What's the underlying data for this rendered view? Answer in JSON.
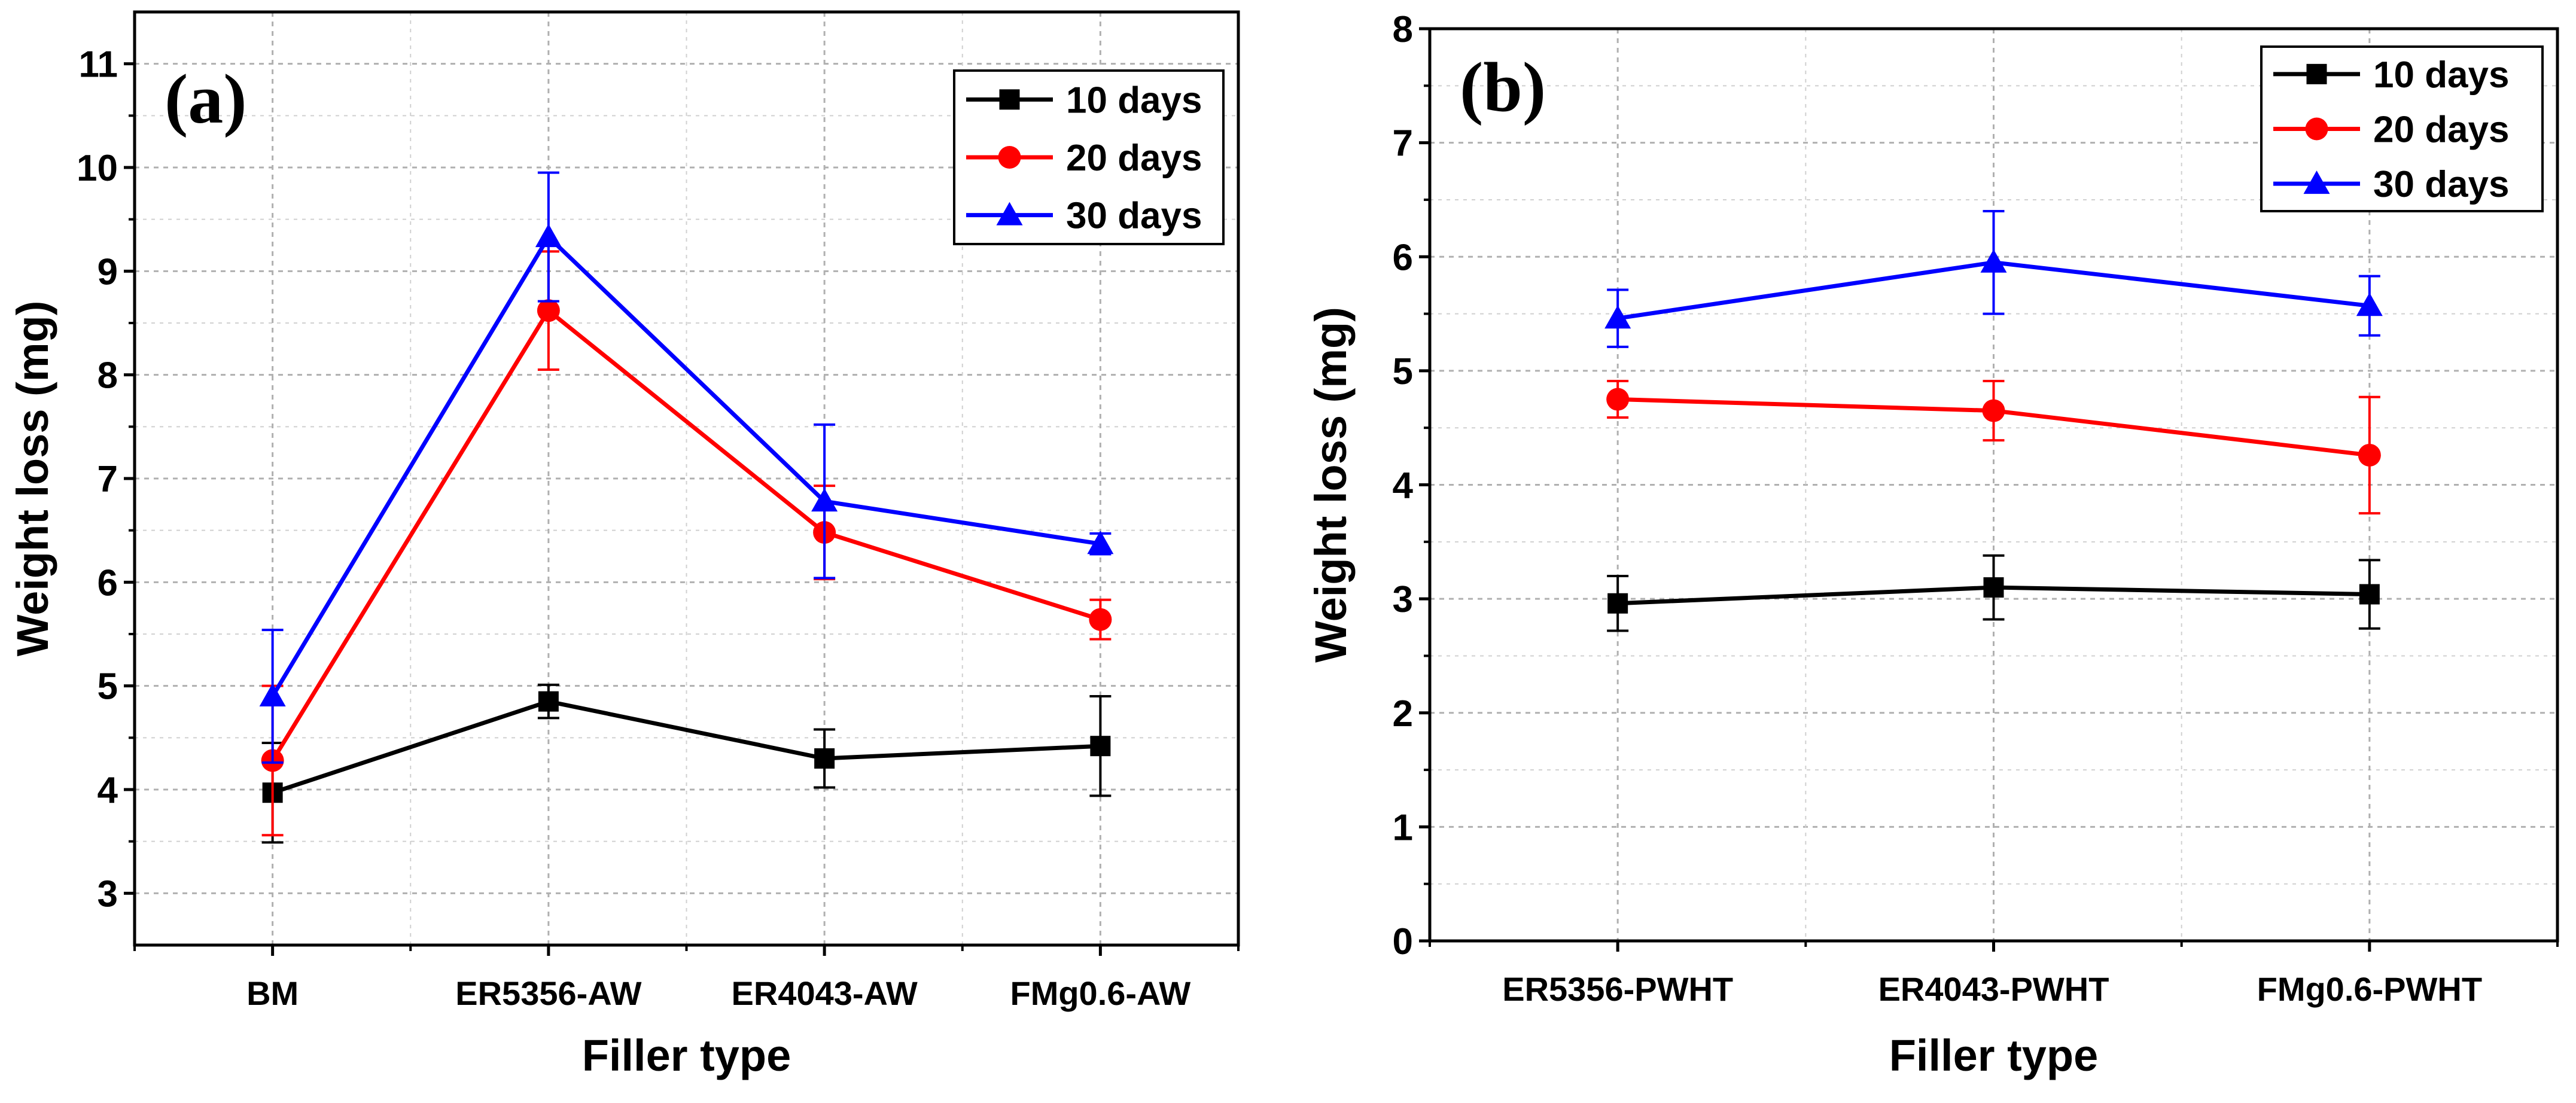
{
  "chart_data": [
    {
      "panel": "(a)",
      "type": "line",
      "xlabel": "Filler type",
      "ylabel": "Weight loss (mg)",
      "categories": [
        "BM",
        "ER5356-AW",
        "ER4043-AW",
        "FMg0.6-AW"
      ],
      "ylim": [
        2.5,
        11.5
      ],
      "yticks": [
        3,
        4,
        5,
        6,
        7,
        8,
        9,
        10,
        11
      ],
      "grid": true,
      "legend_position": "top-right",
      "series": [
        {
          "name": "10 days",
          "color": "#000000",
          "marker": "square",
          "values": [
            3.97,
            4.85,
            4.3,
            4.42
          ],
          "errors": [
            0.48,
            0.16,
            0.28,
            0.48
          ]
        },
        {
          "name": "20 days",
          "color": "#ff0000",
          "marker": "circle",
          "values": [
            4.28,
            8.62,
            6.48,
            5.64
          ],
          "errors": [
            0.72,
            0.57,
            0.45,
            0.19
          ]
        },
        {
          "name": "30 days",
          "color": "#0000ff",
          "marker": "triangle",
          "values": [
            4.9,
            9.33,
            6.78,
            6.37
          ],
          "errors": [
            0.64,
            0.62,
            0.74,
            0.1
          ]
        }
      ]
    },
    {
      "panel": "(b)",
      "type": "line",
      "xlabel": "Filler type",
      "ylabel": "Weight loss (mg)",
      "categories": [
        "ER5356-PWHT",
        "ER4043-PWHT",
        "FMg0.6-PWHT"
      ],
      "ylim": [
        0,
        8
      ],
      "yticks": [
        0,
        1,
        2,
        3,
        4,
        5,
        6,
        7,
        8
      ],
      "grid": true,
      "legend_position": "top-right",
      "series": [
        {
          "name": "10 days",
          "color": "#000000",
          "marker": "square",
          "values": [
            2.96,
            3.1,
            3.04
          ],
          "errors": [
            0.24,
            0.28,
            0.3
          ]
        },
        {
          "name": "20 days",
          "color": "#ff0000",
          "marker": "circle",
          "values": [
            4.75,
            4.65,
            4.26
          ],
          "errors": [
            0.16,
            0.26,
            0.51
          ]
        },
        {
          "name": "30 days",
          "color": "#0000ff",
          "marker": "triangle",
          "values": [
            5.46,
            5.95,
            5.57
          ],
          "errors": [
            0.25,
            0.45,
            0.26
          ]
        }
      ]
    }
  ]
}
